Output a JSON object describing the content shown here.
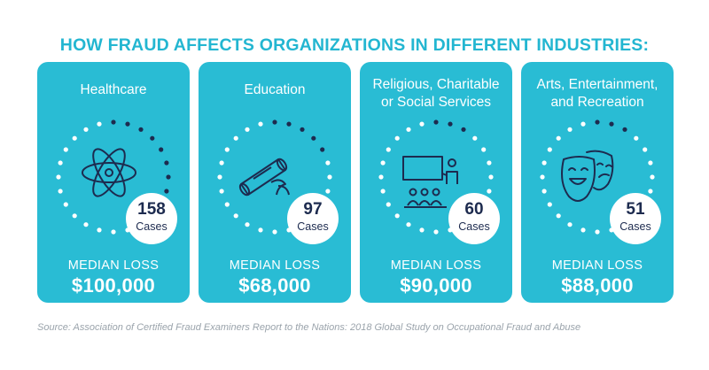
{
  "title": "HOW FRAUD AFFECTS ORGANIZATIONS IN DIFFERENT INDUSTRIES:",
  "median_loss_label": "MEDIAN LOSS",
  "cases_label": "Cases",
  "industries": [
    {
      "name_lines": [
        "Healthcare"
      ],
      "cases": "158",
      "median_loss": "$100,000",
      "icon": "atom-icon",
      "dark_dots": 8
    },
    {
      "name_lines": [
        "Education"
      ],
      "cases": "97",
      "median_loss": "$68,000",
      "icon": "diploma-scroll-icon",
      "dark_dots": 5
    },
    {
      "name_lines": [
        "Religious, Charitable",
        "or Social Services"
      ],
      "cases": "60",
      "median_loss": "$90,000",
      "icon": "presentation-audience-icon",
      "dark_dots": 3
    },
    {
      "name_lines": [
        "Arts, Entertainment,",
        "and Recreation"
      ],
      "cases": "51",
      "median_loss": "$88,000",
      "icon": "theater-masks-icon",
      "dark_dots": 3
    }
  ],
  "source": "Source: Association of Certified Fraud Examiners Report to the Nations: 2018 Global Study on Occupational Fraud and Abuse",
  "colors": {
    "card": "#29bcd4",
    "title": "#23b6d1",
    "dark": "#1d2b4f",
    "dot_light": "#ffffff",
    "source": "#9aa3ab"
  }
}
